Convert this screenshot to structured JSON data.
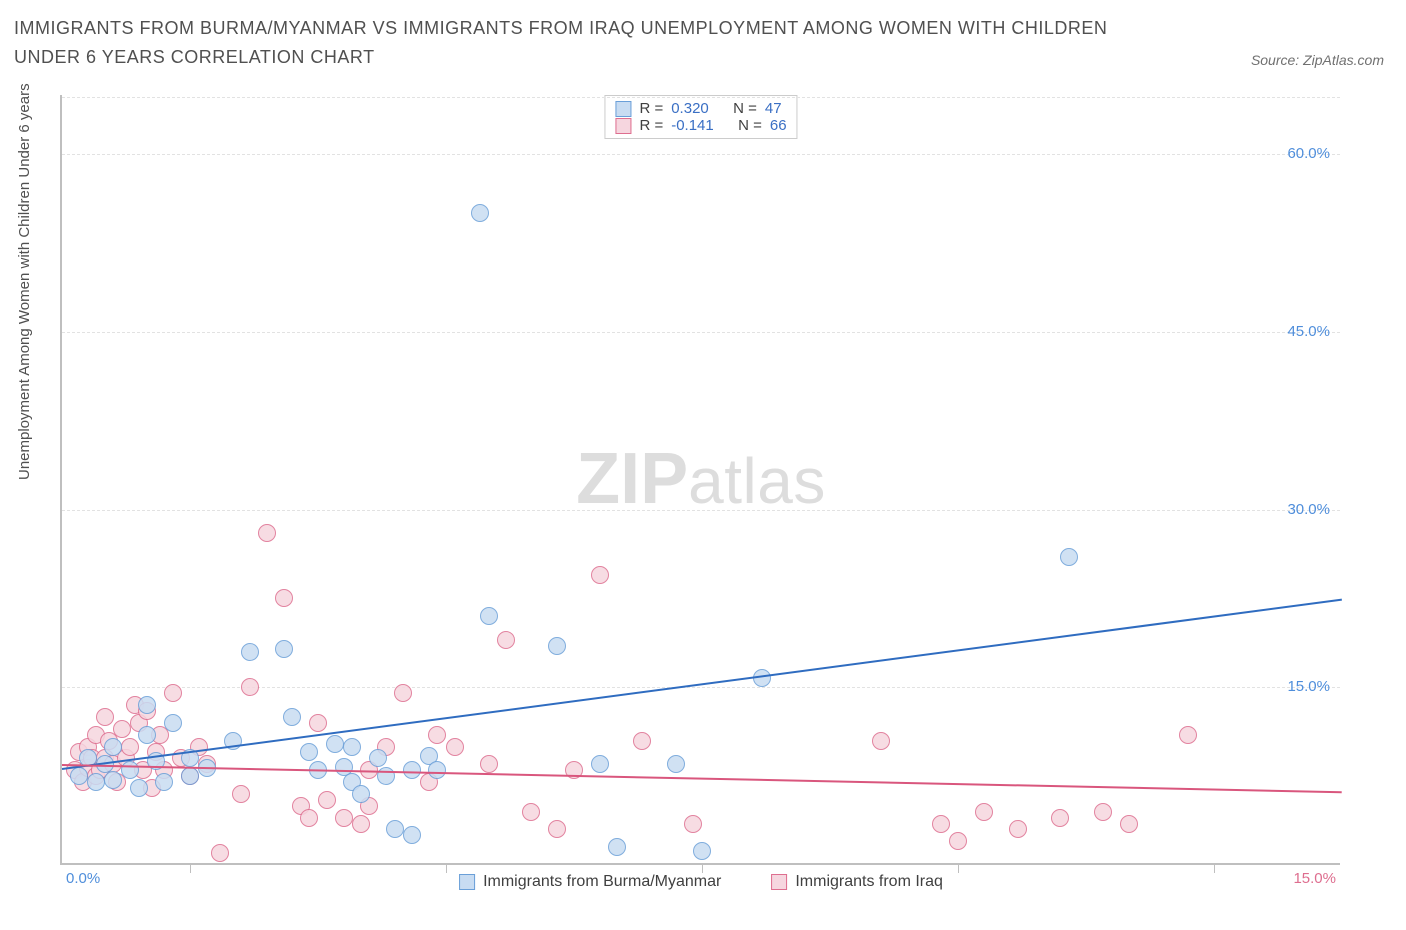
{
  "title": "IMMIGRANTS FROM BURMA/MYANMAR VS IMMIGRANTS FROM IRAQ UNEMPLOYMENT AMONG WOMEN WITH CHILDREN UNDER 6 YEARS CORRELATION CHART",
  "source": "Source: ZipAtlas.com",
  "y_axis_title": "Unemployment Among Women with Children Under 6 years",
  "watermark_a": "ZIP",
  "watermark_b": "atlas",
  "chart": {
    "type": "scatter",
    "background_color": "#ffffff",
    "grid_color": "#e2e2e2",
    "axis_color": "#bfbfbf",
    "xlim": [
      0.0,
      15.0
    ],
    "ylim": [
      0.0,
      65.0
    ],
    "y_ticks": [
      15.0,
      30.0,
      45.0,
      60.0
    ],
    "y_tick_labels": [
      "15.0%",
      "30.0%",
      "45.0%",
      "60.0%"
    ],
    "x_ticks": [
      1.5,
      4.5,
      7.5,
      10.5,
      13.5
    ],
    "x_left_label": "0.0%",
    "x_right_label": "15.0%",
    "y_tick_color": "#4f8edb",
    "point_radius": 9,
    "point_stroke_width": 1.5,
    "series": [
      {
        "name": "Immigrants from Burma/Myanmar",
        "fill": "#c8dcf2",
        "stroke": "#6a9fd8",
        "R": "0.320",
        "N": "47",
        "trend": {
          "y_at_x0": 8.2,
          "y_at_xmax": 22.5,
          "color": "#2f6cc0"
        },
        "points": [
          [
            0.2,
            7.5
          ],
          [
            0.3,
            9.0
          ],
          [
            0.4,
            7.0
          ],
          [
            0.5,
            8.5
          ],
          [
            0.6,
            10.0
          ],
          [
            0.6,
            7.2
          ],
          [
            0.8,
            8.0
          ],
          [
            0.9,
            6.5
          ],
          [
            1.0,
            11.0
          ],
          [
            1.0,
            13.5
          ],
          [
            1.1,
            8.8
          ],
          [
            1.2,
            7.0
          ],
          [
            1.3,
            12.0
          ],
          [
            1.5,
            9.0
          ],
          [
            1.5,
            7.5
          ],
          [
            1.7,
            8.2
          ],
          [
            2.0,
            10.5
          ],
          [
            2.2,
            18.0
          ],
          [
            2.6,
            18.2
          ],
          [
            2.7,
            12.5
          ],
          [
            2.9,
            9.5
          ],
          [
            3.0,
            8.0
          ],
          [
            3.2,
            10.2
          ],
          [
            3.3,
            8.3
          ],
          [
            3.4,
            7.0
          ],
          [
            3.4,
            10.0
          ],
          [
            3.5,
            6.0
          ],
          [
            3.7,
            9.0
          ],
          [
            3.8,
            7.5
          ],
          [
            3.9,
            3.0
          ],
          [
            4.1,
            8.0
          ],
          [
            4.1,
            2.5
          ],
          [
            4.3,
            9.2
          ],
          [
            4.4,
            8.0
          ],
          [
            4.9,
            55.0
          ],
          [
            5.0,
            21.0
          ],
          [
            5.8,
            18.5
          ],
          [
            6.3,
            8.5
          ],
          [
            6.5,
            1.5
          ],
          [
            7.2,
            8.5
          ],
          [
            7.5,
            1.2
          ],
          [
            8.2,
            15.8
          ],
          [
            11.8,
            26.0
          ]
        ]
      },
      {
        "name": "Immigrants from Iraq",
        "fill": "#f6d6df",
        "stroke": "#de6e8f",
        "R": "-0.141",
        "N": "66",
        "trend": {
          "y_at_x0": 8.5,
          "y_at_xmax": 6.2,
          "color": "#d9567d"
        },
        "points": [
          [
            0.15,
            8.0
          ],
          [
            0.2,
            9.5
          ],
          [
            0.25,
            7.0
          ],
          [
            0.3,
            10.0
          ],
          [
            0.3,
            8.2
          ],
          [
            0.35,
            9.0
          ],
          [
            0.4,
            11.0
          ],
          [
            0.4,
            7.5
          ],
          [
            0.45,
            8.0
          ],
          [
            0.5,
            12.5
          ],
          [
            0.5,
            9.0
          ],
          [
            0.55,
            10.5
          ],
          [
            0.6,
            8.5
          ],
          [
            0.65,
            7.0
          ],
          [
            0.7,
            11.5
          ],
          [
            0.75,
            9.0
          ],
          [
            0.8,
            10.0
          ],
          [
            0.85,
            13.5
          ],
          [
            0.9,
            12.0
          ],
          [
            0.95,
            8.0
          ],
          [
            1.0,
            13.0
          ],
          [
            1.05,
            6.5
          ],
          [
            1.1,
            9.5
          ],
          [
            1.15,
            11.0
          ],
          [
            1.2,
            8.0
          ],
          [
            1.3,
            14.5
          ],
          [
            1.4,
            9.0
          ],
          [
            1.5,
            7.5
          ],
          [
            1.6,
            10.0
          ],
          [
            1.7,
            8.5
          ],
          [
            1.85,
            1.0
          ],
          [
            2.1,
            6.0
          ],
          [
            2.2,
            15.0
          ],
          [
            2.4,
            28.0
          ],
          [
            2.6,
            22.5
          ],
          [
            2.8,
            5.0
          ],
          [
            2.9,
            4.0
          ],
          [
            3.0,
            12.0
          ],
          [
            3.1,
            5.5
          ],
          [
            3.3,
            4.0
          ],
          [
            3.5,
            3.5
          ],
          [
            3.6,
            8.0
          ],
          [
            3.6,
            5.0
          ],
          [
            3.8,
            10.0
          ],
          [
            4.0,
            14.5
          ],
          [
            4.3,
            7.0
          ],
          [
            4.4,
            11.0
          ],
          [
            4.6,
            10.0
          ],
          [
            5.0,
            8.5
          ],
          [
            5.2,
            19.0
          ],
          [
            5.5,
            4.5
          ],
          [
            5.8,
            3.0
          ],
          [
            6.0,
            8.0
          ],
          [
            6.3,
            24.5
          ],
          [
            6.8,
            10.5
          ],
          [
            7.4,
            3.5
          ],
          [
            9.6,
            10.5
          ],
          [
            10.3,
            3.5
          ],
          [
            10.5,
            2.0
          ],
          [
            10.8,
            4.5
          ],
          [
            11.2,
            3.0
          ],
          [
            11.7,
            4.0
          ],
          [
            12.2,
            4.5
          ],
          [
            12.5,
            3.5
          ],
          [
            13.2,
            11.0
          ]
        ]
      }
    ]
  },
  "legend_top": {
    "R_label": "R =",
    "N_label": "N ="
  }
}
